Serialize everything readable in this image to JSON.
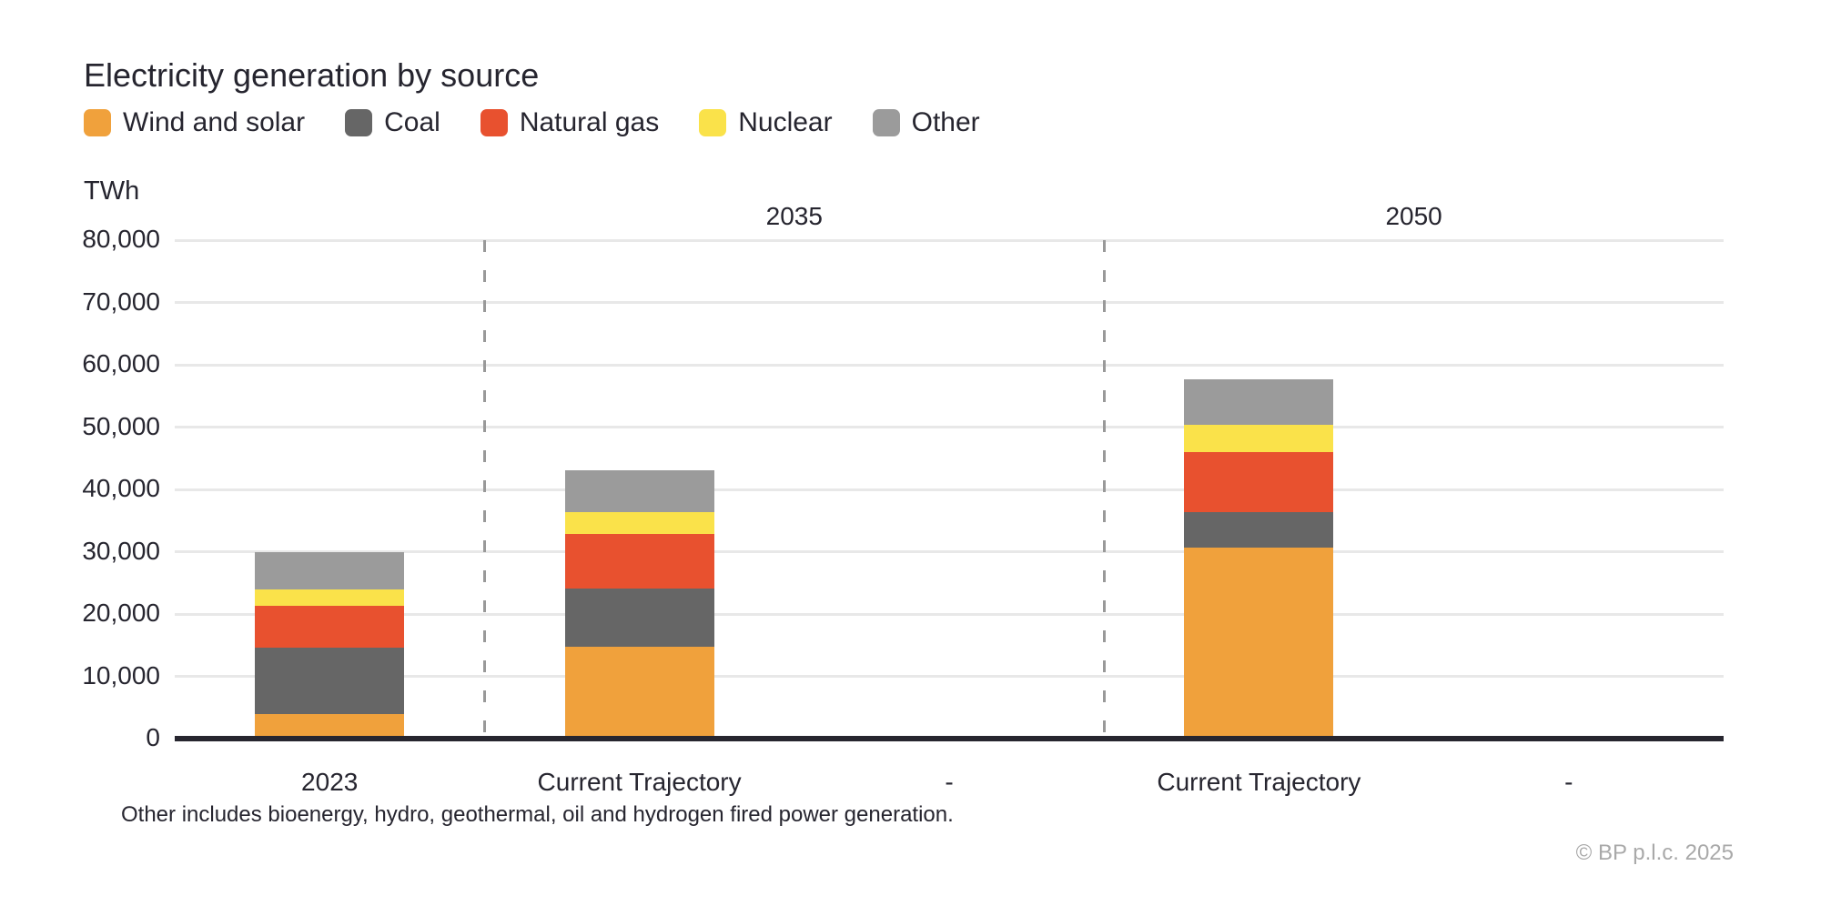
{
  "header": {
    "title": "Electricity generation by source"
  },
  "legend": [
    {
      "label": "Wind and solar",
      "color": "#F0A13C"
    },
    {
      "label": "Coal",
      "color": "#666666"
    },
    {
      "label": "Natural gas",
      "color": "#E8512F"
    },
    {
      "label": "Nuclear",
      "color": "#FAE24A"
    },
    {
      "label": "Other",
      "color": "#9B9B9B"
    }
  ],
  "chart_data": {
    "type": "bar",
    "stacked": true,
    "title": "Electricity generation by source",
    "ylabel": "TWh",
    "ylim": [
      0,
      80000
    ],
    "ytick_step": 10000,
    "grid": true,
    "legend_position": "top-left",
    "categories": [
      "2023",
      "Current Trajectory",
      "-",
      "Current Trajectory",
      "-"
    ],
    "group_headers": [
      {
        "label": "2035",
        "span": [
          1,
          2
        ]
      },
      {
        "label": "2050",
        "span": [
          3,
          4
        ]
      }
    ],
    "series": [
      {
        "name": "Wind and solar",
        "color": "#F0A13C",
        "values": [
          3900,
          14800,
          null,
          30700,
          null
        ]
      },
      {
        "name": "Coal",
        "color": "#666666",
        "values": [
          10700,
          9300,
          null,
          5700,
          null
        ]
      },
      {
        "name": "Natural gas",
        "color": "#E8512F",
        "values": [
          6700,
          8800,
          null,
          9600,
          null
        ]
      },
      {
        "name": "Nuclear",
        "color": "#FAE24A",
        "values": [
          2600,
          3400,
          null,
          4400,
          null
        ]
      },
      {
        "name": "Other",
        "color": "#9B9B9B",
        "values": [
          6100,
          6700,
          null,
          7300,
          null
        ]
      }
    ],
    "totals": [
      30000,
      43000,
      null,
      57700,
      null
    ]
  },
  "axis_unit": "TWh",
  "footnote": "Other includes bioenergy, hydro, geothermal, oil and hydrogen fired power generation.",
  "copyright": "© BP p.l.c. 2025"
}
